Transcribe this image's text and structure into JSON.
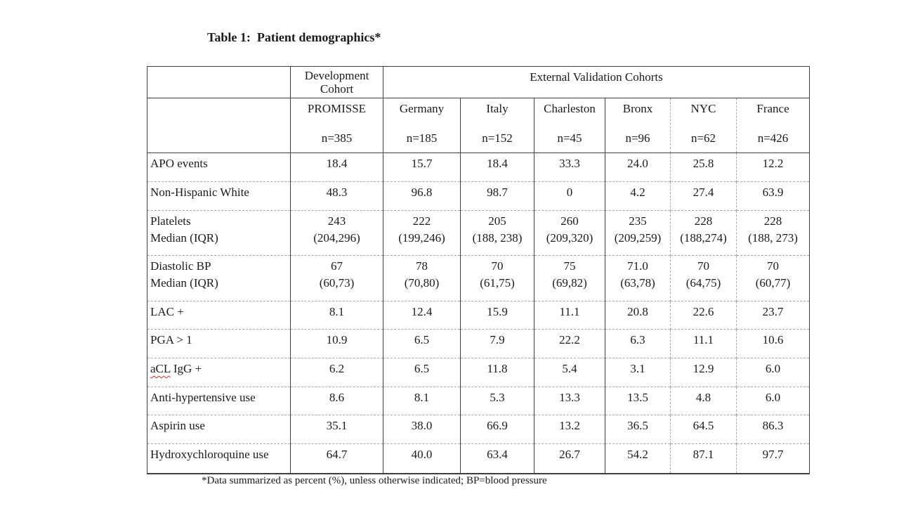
{
  "title": "Table 1:  Patient demographics*",
  "table": {
    "dev_header": {
      "line1": "Development",
      "line2": "Cohort"
    },
    "external_header": "External Validation Cohorts",
    "cohorts": [
      {
        "name": "PROMISSE",
        "n": "n=385"
      },
      {
        "name": "Germany",
        "n": "n=185"
      },
      {
        "name": "Italy",
        "n": "n=152"
      },
      {
        "name": "Charleston",
        "n": "n=45"
      },
      {
        "name": "Bronx",
        "n": "n=96"
      },
      {
        "name": "NYC",
        "n": "n=62"
      },
      {
        "name": "France",
        "n": "n=426"
      }
    ],
    "rows": [
      {
        "label": "APO events",
        "values": [
          "18.4",
          "15.7",
          "18.4",
          "33.3",
          "24.0",
          "25.8",
          "12.2"
        ]
      },
      {
        "label": "Non-Hispanic White",
        "values": [
          "48.3",
          "96.8",
          "98.7",
          "0",
          "4.2",
          "27.4",
          "63.9"
        ]
      },
      {
        "label": "Platelets",
        "label2": "Median (IQR)",
        "values": [
          "243",
          "222",
          "205",
          "260",
          "235",
          "228",
          "228"
        ],
        "values2": [
          "(204,296)",
          "(199,246)",
          "(188, 238)",
          "(209,320)",
          "(209,259)",
          "(188,274)",
          "(188, 273)"
        ]
      },
      {
        "label": "Diastolic BP",
        "label2": "Median (IQR)",
        "values": [
          "67",
          "78",
          "70",
          "75",
          "71.0",
          "70",
          "70"
        ],
        "values2": [
          "(60,73)",
          "(70,80)",
          "(61,75)",
          "(69,82)",
          "(63,78)",
          "(64,75)",
          "(60,77)"
        ]
      },
      {
        "label": "LAC +",
        "values": [
          "8.1",
          "12.4",
          "15.9",
          "11.1",
          "20.8",
          "22.6",
          "23.7"
        ]
      },
      {
        "label": "PGA > 1",
        "values": [
          "10.9",
          "6.5",
          "7.9",
          "22.2",
          "6.3",
          "11.1",
          "10.6"
        ]
      },
      {
        "wavy": "aCL",
        "label": " IgG +",
        "values": [
          "6.2",
          "6.5",
          "11.8",
          "5.4",
          "3.1",
          "12.9",
          "6.0"
        ]
      },
      {
        "label": "Anti-hypertensive use",
        "values": [
          "8.6",
          "8.1",
          "5.3",
          "13.3",
          "13.5",
          "4.8",
          "6.0"
        ]
      },
      {
        "label": "Aspirin use",
        "values": [
          "35.1",
          "38.0",
          "66.9",
          "13.2",
          "36.5",
          "64.5",
          "86.3"
        ]
      },
      {
        "label": "Hydroxychloroquine use",
        "values": [
          "64.7",
          "40.0",
          "63.4",
          "26.7",
          "54.2",
          "87.1",
          "97.7"
        ]
      }
    ]
  },
  "footnote": "*Data summarized as percent (%), unless otherwise indicated; BP=blood pressure",
  "colors": {
    "border_solid": "#3f3f3f",
    "border_dashed": "#a8a8a8",
    "text": "#1b1b1b",
    "spellcheck_squiggle": "#d42a2a"
  }
}
